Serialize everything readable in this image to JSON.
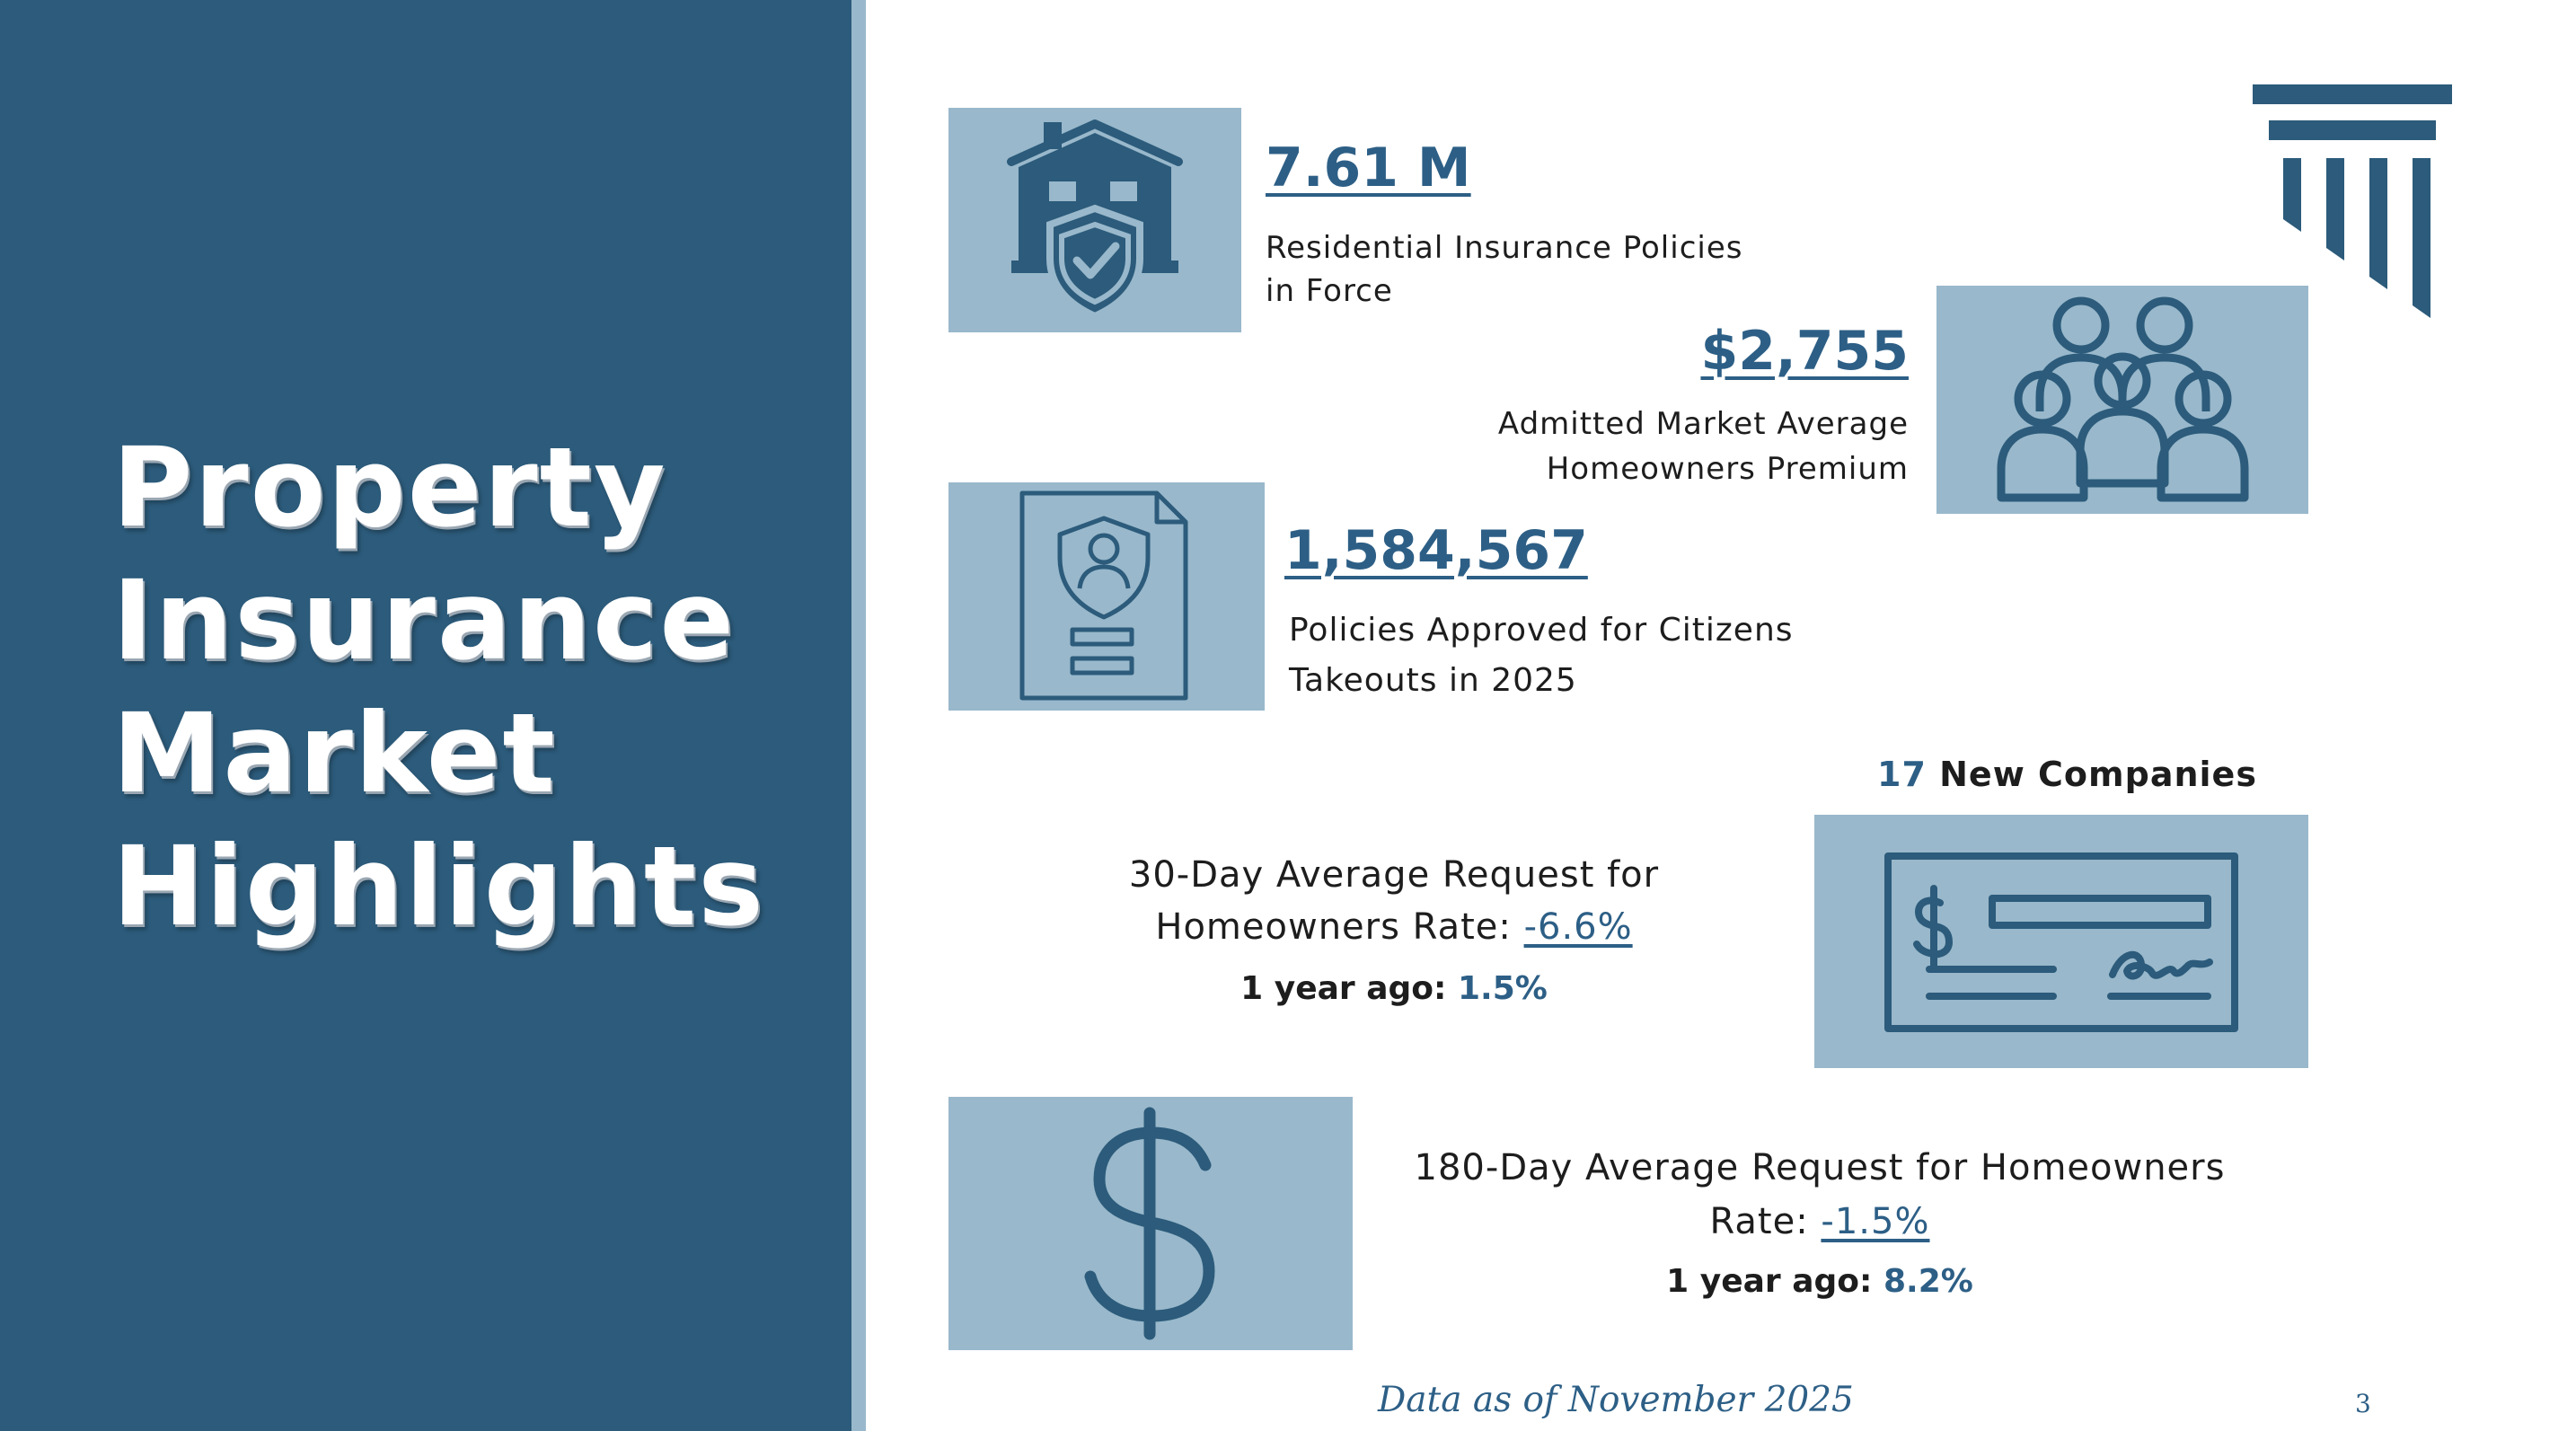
{
  "title": {
    "lines": [
      "Property",
      "Insurance",
      "Market",
      "Highlights"
    ]
  },
  "residential": {
    "value": "7.61 M",
    "label_line1": "Residential Insurance Policies",
    "label_line2": "in Force",
    "icon": "house-shield-icon"
  },
  "premium": {
    "value": "$2,755",
    "label_line1": "Admitted Market Average",
    "label_line2": "Homeowners Premium",
    "icon": "people-group-icon"
  },
  "citizens": {
    "value": "1,584,567",
    "label_line1": "Policies Approved for Citizens",
    "label_line2": "Takeouts in 2025",
    "icon": "policy-document-icon"
  },
  "new_companies": {
    "count": "17",
    "label": "New Companies",
    "icon": "check-icon"
  },
  "rate_30": {
    "line1": "30-Day Average Request for",
    "line2_prefix": "Homeowners Rate: ",
    "rate": "-6.6%",
    "year_ago_label": "1 year ago:",
    "year_ago_value": "1.5%"
  },
  "rate_180": {
    "line1": "180-Day Average Request for Homeowners",
    "line2_prefix": "Rate: ",
    "rate": "-1.5%",
    "year_ago_label": "1 year ago:",
    "year_ago_value": "8.2%",
    "icon": "dollar-sign-icon"
  },
  "logo": {
    "icon": "column-logo-icon"
  },
  "footer": {
    "text": "Data as of  November 2025",
    "page_number": "3"
  },
  "colors": {
    "sidebar": "#2c5b7b",
    "tile": "#99b8cb",
    "accent": "#2d5f86",
    "icon": "#2c5b7b"
  }
}
